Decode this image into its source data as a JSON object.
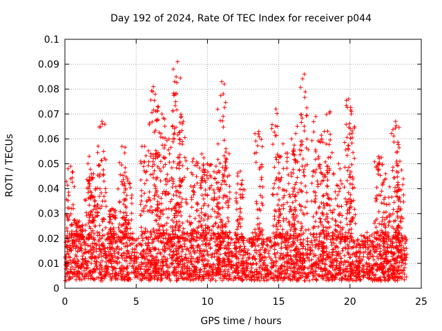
{
  "chart_data": {
    "type": "scatter",
    "title": "Day 192 of 2024, Rate Of TEC Index for receiver p044",
    "xlabel": "GPS time / hours",
    "ylabel": "ROTI / TECUs",
    "xlim": [
      0,
      25
    ],
    "ylim": [
      0,
      0.1
    ],
    "xticks": [
      "0",
      "5",
      "10",
      "15",
      "20",
      "25"
    ],
    "yticks": [
      "0",
      "0.01",
      "0.02",
      "0.03",
      "0.04",
      "0.05",
      "0.06",
      "0.07",
      "0.08",
      "0.09",
      "0.1"
    ],
    "grid": true,
    "marker": "+",
    "color": "#ff0000",
    "data_span_hours": [
      0,
      24
    ],
    "baseline_band": [
      0.003,
      0.02
    ],
    "series": [
      {
        "x": [
          0.4,
          1.0,
          1.7,
          2.0,
          2.6,
          3.3,
          4.0,
          4.4,
          5.6,
          6.2,
          6.5,
          6.8,
          7.3,
          7.8,
          7.9,
          8.3,
          9.0,
          9.6,
          10.0,
          10.6,
          11.0,
          11.3,
          12.3,
          13.6,
          14.8,
          15.3,
          15.9,
          16.3,
          16.8,
          17.6,
          18.2,
          18.6,
          19.2,
          19.9,
          20.1,
          22.0,
          22.5,
          23.2,
          23.5
        ],
        "y": [
          0.049,
          0.027,
          0.053,
          0.046,
          0.067,
          0.032,
          0.057,
          0.044,
          0.057,
          0.081,
          0.073,
          0.07,
          0.06,
          0.078,
          0.091,
          0.067,
          0.052,
          0.054,
          0.05,
          0.049,
          0.083,
          0.056,
          0.047,
          0.063,
          0.072,
          0.058,
          0.06,
          0.065,
          0.086,
          0.069,
          0.063,
          0.071,
          0.05,
          0.076,
          0.071,
          0.053,
          0.046,
          0.067,
          0.051
        ]
      }
    ]
  }
}
